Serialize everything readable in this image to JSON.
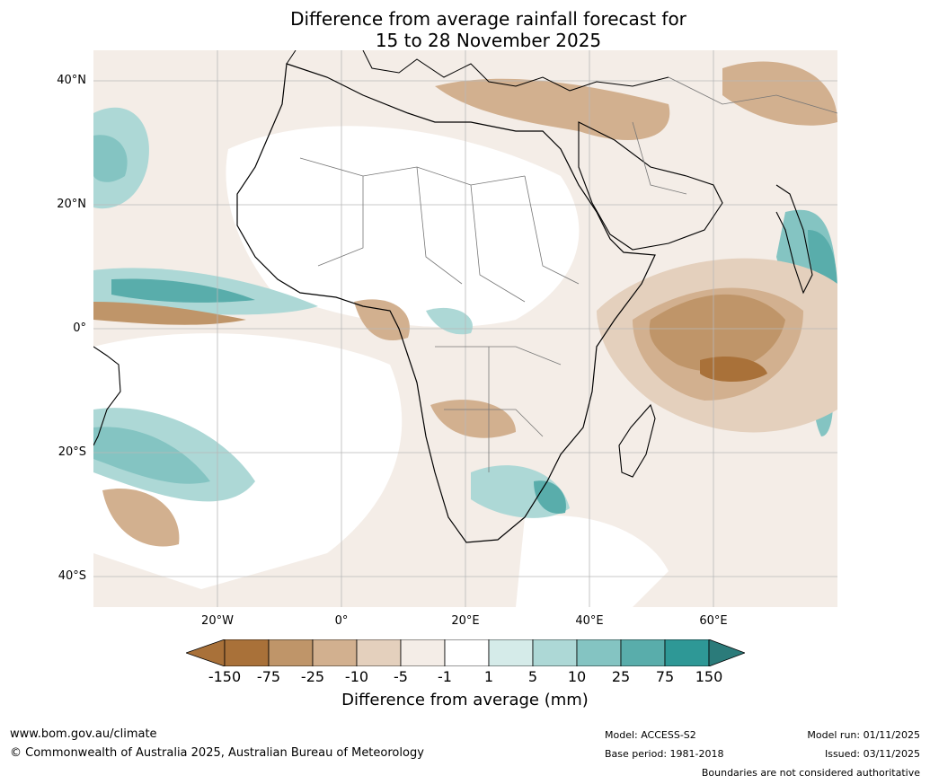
{
  "title": {
    "line1": "Difference from average rainfall forecast for",
    "line2": "15 to 28 November 2025"
  },
  "axes": {
    "lat_labels": [
      "40°N",
      "20°N",
      "0°",
      "20°S",
      "40°S"
    ],
    "lon_labels": [
      "20°W",
      "0°",
      "20°E",
      "40°E",
      "60°E"
    ]
  },
  "legend": {
    "ticks": [
      "-150",
      "-75",
      "-25",
      "-10",
      "-5",
      "-1",
      "1",
      "5",
      "10",
      "25",
      "75",
      "150"
    ],
    "colors": [
      "#a97139",
      "#bf9569",
      "#d2b08f",
      "#e4d0bd",
      "#f4ede7",
      "#ffffff",
      "#d5ebe9",
      "#add8d6",
      "#84c4c2",
      "#59adab",
      "#2e9896",
      "#2b7b7a"
    ],
    "label": "Difference from average (mm)"
  },
  "footer": {
    "website": "www.bom.gov.au/climate",
    "copyright": "© Commonwealth of Australia 2025, Australian Bureau of Meteorology",
    "model": "Model: ACCESS-S2",
    "base_period": "Base period: 1981-2018",
    "model_run": "Model run: 01/11/2025",
    "issued": "Issued: 03/11/2025",
    "disclaimer": "Boundaries are not considered authoritative"
  }
}
